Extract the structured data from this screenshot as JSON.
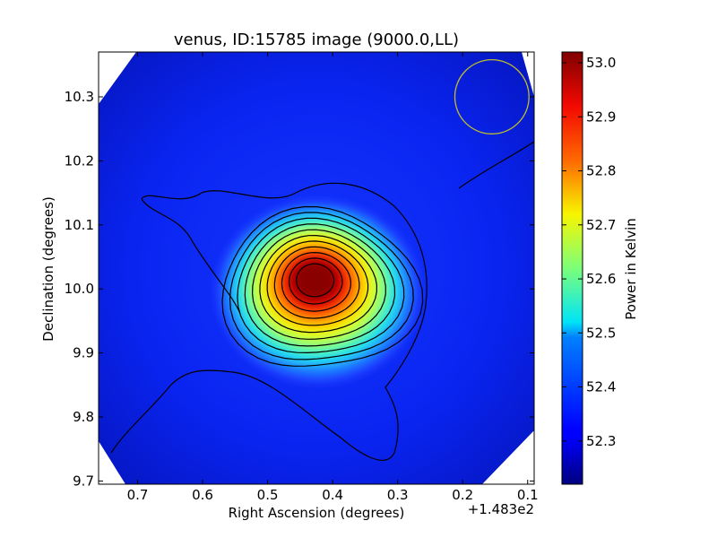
{
  "chart_data": {
    "type": "heatmap",
    "title": "venus, ID:15785 image (9000.0,LL)",
    "xlabel": "Right Ascension (degrees)",
    "ylabel": "Declination (degrees)",
    "x_offset_label": "+1.483e2",
    "x_range": [
      0.76,
      0.09
    ],
    "y_range": [
      9.695,
      10.37
    ],
    "x_ticks": [
      0.7,
      0.6,
      0.5,
      0.4,
      0.3,
      0.2,
      0.1
    ],
    "x_tick_labels": [
      "0.7",
      "0.6",
      "0.5",
      "0.4",
      "0.3",
      "0.2",
      "0.1"
    ],
    "y_ticks": [
      9.7,
      9.8,
      9.9,
      10.0,
      10.1,
      10.2,
      10.3
    ],
    "y_tick_labels": [
      "9.7",
      "9.8",
      "9.9",
      "10.0",
      "10.1",
      "10.2",
      "10.3"
    ],
    "colorbar": {
      "label": "Power in Kelvin",
      "range": [
        52.22,
        53.02
      ],
      "ticks": [
        52.3,
        52.4,
        52.5,
        52.6,
        52.7,
        52.8,
        52.9,
        53.0
      ],
      "tick_labels": [
        "52.3",
        "52.4",
        "52.5",
        "52.6",
        "52.7",
        "52.8",
        "52.9",
        "53.0"
      ],
      "colormap": "jet"
    },
    "source": {
      "center_x": 0.428,
      "center_y": 10.015,
      "peak_value": 53.0,
      "background_value": 52.32
    },
    "contour_count": 11,
    "beam_circle": {
      "center_x": 0.155,
      "center_y": 10.3,
      "radius_deg": 0.057,
      "color": "#bdbd2c"
    },
    "colors": {
      "contour": "#000000",
      "axis": "#000000",
      "background": "#ffffff"
    }
  }
}
